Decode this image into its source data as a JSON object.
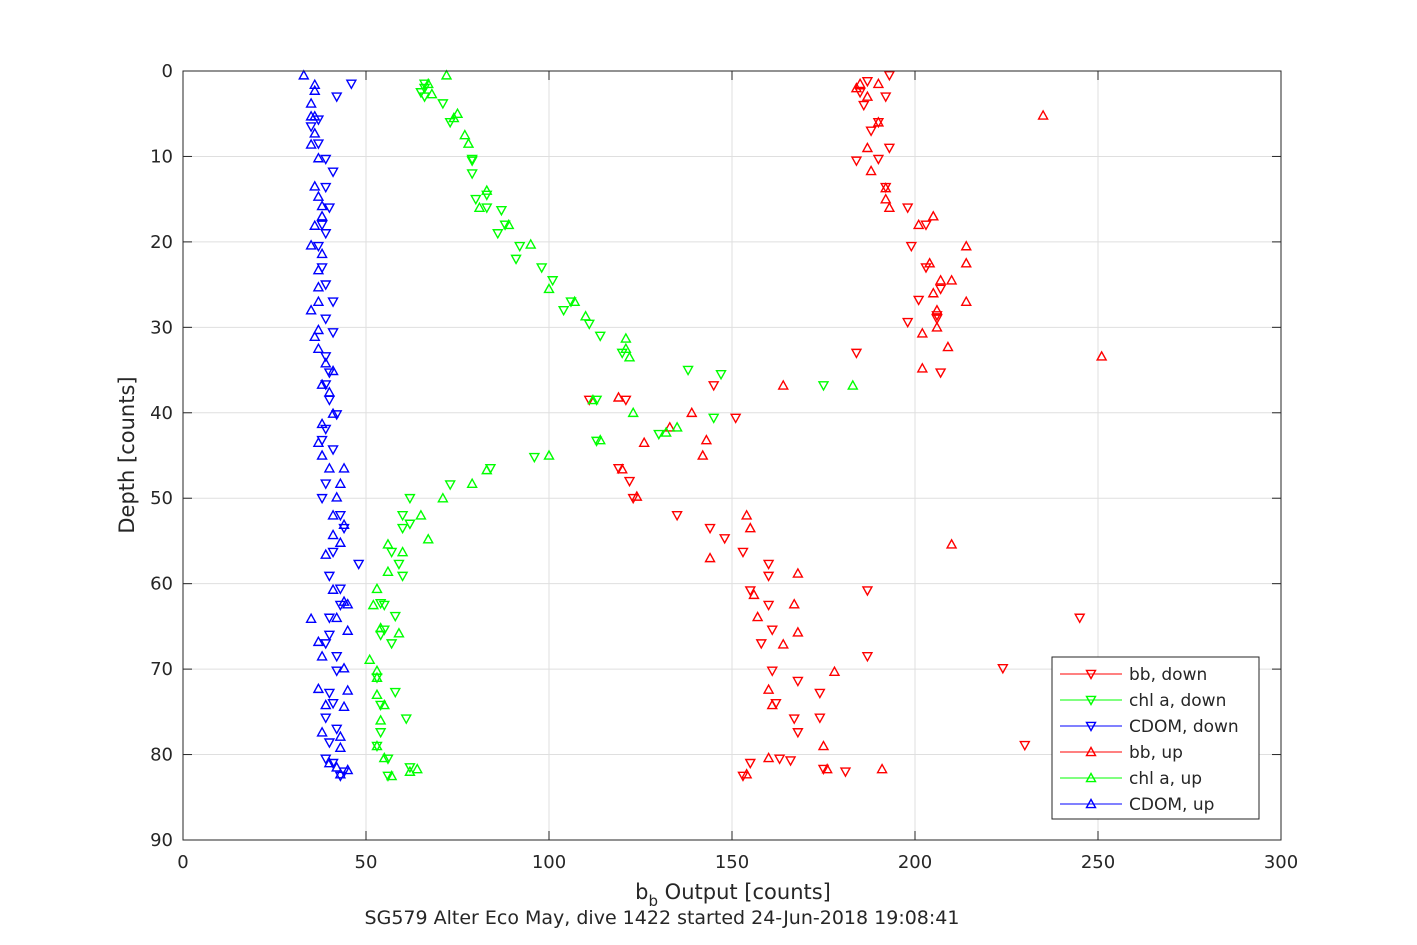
{
  "chart_data": {
    "type": "scatter",
    "xlabel_main": "b",
    "xlabel_sub": "b",
    "xlabel_rest": " Output [counts]",
    "ylabel": "Depth [counts]",
    "subtitle": "SG579 Alter Eco May, dive 1422 started 24-Jun-2018 19:08:41",
    "xlim": [
      0,
      300
    ],
    "ylim": [
      0,
      90
    ],
    "y_reversed": true,
    "grid": true,
    "legend_position": "bottom-right",
    "xticks": [
      0,
      50,
      100,
      150,
      200,
      250,
      300
    ],
    "yticks": [
      0,
      10,
      20,
      30,
      40,
      50,
      60,
      70,
      80,
      90
    ],
    "series": [
      {
        "name": "bb, down",
        "color": "#ff0000",
        "marker": "triangle-down",
        "points": [
          [
            193,
            0.5
          ],
          [
            187,
            1.2
          ],
          [
            185,
            2.5
          ],
          [
            192,
            3
          ],
          [
            186,
            4
          ],
          [
            190,
            6
          ],
          [
            188,
            7
          ],
          [
            193,
            9
          ],
          [
            184,
            10.5
          ],
          [
            190,
            10.3
          ],
          [
            192,
            13.6
          ],
          [
            198,
            16
          ],
          [
            203,
            18
          ],
          [
            199,
            20.5
          ],
          [
            203,
            23
          ],
          [
            207,
            25.5
          ],
          [
            201,
            26.8
          ],
          [
            206,
            28.6
          ],
          [
            198,
            29.4
          ],
          [
            206,
            29
          ],
          [
            184,
            33
          ],
          [
            207,
            35.3
          ],
          [
            145,
            36.8
          ],
          [
            111,
            38.5
          ],
          [
            121,
            38.5
          ],
          [
            151,
            40.6
          ],
          [
            119,
            46.5
          ],
          [
            122,
            48
          ],
          [
            123,
            50
          ],
          [
            135,
            52
          ],
          [
            144,
            53.5
          ],
          [
            148,
            54.7
          ],
          [
            153,
            56.3
          ],
          [
            160,
            57.7
          ],
          [
            160,
            59.1
          ],
          [
            155,
            60.8
          ],
          [
            187,
            60.8
          ],
          [
            160,
            62.5
          ],
          [
            245,
            64
          ],
          [
            161,
            65.4
          ],
          [
            158,
            67
          ],
          [
            187,
            68.5
          ],
          [
            224,
            69.9
          ],
          [
            161,
            70.2
          ],
          [
            174,
            72.8
          ],
          [
            168,
            71.4
          ],
          [
            162,
            74
          ],
          [
            174,
            75.7
          ],
          [
            167,
            75.8
          ],
          [
            168,
            77.4
          ],
          [
            230,
            78.9
          ],
          [
            163,
            80.5
          ],
          [
            166,
            80.7
          ],
          [
            155,
            81
          ],
          [
            175,
            81.7
          ],
          [
            181,
            82
          ],
          [
            153,
            82.5
          ]
        ]
      },
      {
        "name": "chl a, down",
        "color": "#00ff00",
        "marker": "triangle-down",
        "points": [
          [
            66,
            1.5
          ],
          [
            66,
            2
          ],
          [
            65,
            2.5
          ],
          [
            66,
            3
          ],
          [
            71,
            3.8
          ],
          [
            73,
            6
          ],
          [
            79,
            10.5
          ],
          [
            79,
            10.3
          ],
          [
            79,
            12
          ],
          [
            83,
            14.5
          ],
          [
            80,
            15
          ],
          [
            83,
            16
          ],
          [
            87,
            16.3
          ],
          [
            88,
            18
          ],
          [
            86,
            19
          ],
          [
            92,
            20.5
          ],
          [
            91,
            22
          ],
          [
            98,
            23
          ],
          [
            101,
            24.5
          ],
          [
            106,
            27
          ],
          [
            104,
            28
          ],
          [
            111,
            29.6
          ],
          [
            114,
            31
          ],
          [
            120,
            33
          ],
          [
            138,
            35
          ],
          [
            147,
            35.5
          ],
          [
            175,
            36.8
          ],
          [
            113,
            38.5
          ],
          [
            145,
            40.6
          ],
          [
            130,
            42.5
          ],
          [
            113,
            43.3
          ],
          [
            96,
            45.2
          ],
          [
            84,
            46.5
          ],
          [
            73,
            48.4
          ],
          [
            62,
            50
          ],
          [
            60,
            52
          ],
          [
            60,
            53.5
          ],
          [
            62,
            53
          ],
          [
            57,
            56.3
          ],
          [
            59,
            57.7
          ],
          [
            60,
            59.1
          ],
          [
            54,
            62.3
          ],
          [
            55,
            62.5
          ],
          [
            58,
            63.8
          ],
          [
            55,
            65.4
          ],
          [
            54,
            66
          ],
          [
            57,
            67
          ],
          [
            53,
            71
          ],
          [
            58,
            72.7
          ],
          [
            54,
            74.2
          ],
          [
            61,
            75.8
          ],
          [
            54,
            77.4
          ],
          [
            53,
            79
          ],
          [
            56,
            80.5
          ],
          [
            62,
            81.5
          ],
          [
            56,
            82.5
          ]
        ]
      },
      {
        "name": "CDOM, down",
        "color": "#0000ff",
        "marker": "triangle-down",
        "points": [
          [
            46,
            1.5
          ],
          [
            42,
            3
          ],
          [
            37,
            5.7
          ],
          [
            35,
            6.5
          ],
          [
            37,
            8.5
          ],
          [
            39,
            10.3
          ],
          [
            41,
            11.8
          ],
          [
            39,
            13.6
          ],
          [
            40,
            16
          ],
          [
            38,
            18
          ],
          [
            39,
            19
          ],
          [
            37,
            20.5
          ],
          [
            38,
            23
          ],
          [
            39,
            25
          ],
          [
            41,
            27
          ],
          [
            39,
            29
          ],
          [
            41,
            30.6
          ],
          [
            39,
            33.4
          ],
          [
            40,
            35.3
          ],
          [
            39,
            36.7
          ],
          [
            40,
            38.5
          ],
          [
            42,
            40.2
          ],
          [
            39,
            41.9
          ],
          [
            38,
            43.2
          ],
          [
            41,
            44.3
          ],
          [
            39,
            48.3
          ],
          [
            38,
            50
          ],
          [
            43,
            52
          ],
          [
            44,
            53.5
          ],
          [
            41,
            56.3
          ],
          [
            48,
            57.7
          ],
          [
            40,
            59.1
          ],
          [
            43,
            60.6
          ],
          [
            43,
            62.5
          ],
          [
            40,
            64
          ],
          [
            40,
            66
          ],
          [
            39,
            67
          ],
          [
            42,
            68.5
          ],
          [
            42,
            70.2
          ],
          [
            40,
            72.8
          ],
          [
            41,
            74
          ],
          [
            39,
            75.7
          ],
          [
            42,
            77
          ],
          [
            40,
            78.6
          ],
          [
            39,
            80.5
          ],
          [
            41,
            81
          ],
          [
            44,
            82
          ],
          [
            43,
            82.5
          ]
        ]
      },
      {
        "name": "bb, up",
        "color": "#ff0000",
        "marker": "triangle-up",
        "points": [
          [
            185,
            1.5
          ],
          [
            190,
            1.5
          ],
          [
            184,
            2
          ],
          [
            187,
            3
          ],
          [
            235,
            5.2
          ],
          [
            190,
            6
          ],
          [
            187,
            9
          ],
          [
            188,
            11.7
          ],
          [
            192,
            13.7
          ],
          [
            192,
            15
          ],
          [
            193,
            16
          ],
          [
            205,
            17
          ],
          [
            201,
            18
          ],
          [
            214,
            20.5
          ],
          [
            214,
            22.5
          ],
          [
            204,
            22.5
          ],
          [
            207,
            24.5
          ],
          [
            210,
            24.5
          ],
          [
            205,
            26
          ],
          [
            214,
            27
          ],
          [
            206,
            28
          ],
          [
            206,
            30
          ],
          [
            202,
            30.7
          ],
          [
            209,
            32.3
          ],
          [
            251,
            33.4
          ],
          [
            202,
            34.8
          ],
          [
            164,
            36.8
          ],
          [
            119,
            38.2
          ],
          [
            139,
            40
          ],
          [
            126,
            43.5
          ],
          [
            133,
            41.7
          ],
          [
            143,
            43.2
          ],
          [
            142,
            45
          ],
          [
            120,
            46.6
          ],
          [
            124,
            49.8
          ],
          [
            154,
            52
          ],
          [
            155,
            53.5
          ],
          [
            144,
            57
          ],
          [
            168,
            58.8
          ],
          [
            210,
            55.4
          ],
          [
            156,
            61.3
          ],
          [
            167,
            62.4
          ],
          [
            157,
            63.9
          ],
          [
            168,
            65.7
          ],
          [
            164,
            67.1
          ],
          [
            178,
            70.3
          ],
          [
            160,
            72.4
          ],
          [
            161,
            74.2
          ],
          [
            175,
            79
          ],
          [
            176,
            81.7
          ],
          [
            191,
            81.7
          ],
          [
            160,
            80.4
          ],
          [
            154,
            82.3
          ]
        ]
      },
      {
        "name": "chl a, up",
        "color": "#00ff00",
        "marker": "triangle-up",
        "points": [
          [
            72,
            0.5
          ],
          [
            67,
            1.5
          ],
          [
            68,
            2.7
          ],
          [
            75,
            5
          ],
          [
            74,
            5.5
          ],
          [
            77,
            7.5
          ],
          [
            78,
            8.5
          ],
          [
            83,
            14
          ],
          [
            81,
            16
          ],
          [
            89,
            18
          ],
          [
            95,
            20.3
          ],
          [
            100,
            25.5
          ],
          [
            107,
            27
          ],
          [
            110,
            28.7
          ],
          [
            121,
            31.3
          ],
          [
            121,
            32.5
          ],
          [
            122,
            33.5
          ],
          [
            183,
            36.8
          ],
          [
            112,
            38.5
          ],
          [
            123,
            40
          ],
          [
            135,
            41.7
          ],
          [
            132,
            42.3
          ],
          [
            114,
            43.2
          ],
          [
            100,
            45
          ],
          [
            83,
            46.7
          ],
          [
            79,
            48.3
          ],
          [
            71,
            50
          ],
          [
            65,
            52
          ],
          [
            67,
            54.8
          ],
          [
            56,
            55.4
          ],
          [
            60,
            56.3
          ],
          [
            56,
            58.6
          ],
          [
            53,
            60.6
          ],
          [
            52,
            62.5
          ],
          [
            54,
            65.2
          ],
          [
            59,
            65.8
          ],
          [
            51,
            68.9
          ],
          [
            53,
            70.2
          ],
          [
            53,
            71
          ],
          [
            53,
            73
          ],
          [
            55,
            74.2
          ],
          [
            54,
            76
          ],
          [
            53,
            79
          ],
          [
            55,
            80.4
          ],
          [
            64,
            81.7
          ],
          [
            62,
            82
          ],
          [
            57,
            82.5
          ]
        ]
      },
      {
        "name": "CDOM, up",
        "color": "#0000ff",
        "marker": "triangle-up",
        "points": [
          [
            33,
            0.5
          ],
          [
            36,
            1.6
          ],
          [
            36,
            2.3
          ],
          [
            35,
            3.8
          ],
          [
            35,
            5.3
          ],
          [
            36,
            5.3
          ],
          [
            36,
            7.3
          ],
          [
            35,
            8.6
          ],
          [
            37,
            10.2
          ],
          [
            36,
            13.5
          ],
          [
            37,
            14.7
          ],
          [
            38,
            15.8
          ],
          [
            38,
            17
          ],
          [
            36,
            18.1
          ],
          [
            35,
            20.4
          ],
          [
            38,
            21.4
          ],
          [
            37,
            23.3
          ],
          [
            37,
            25.3
          ],
          [
            37,
            27
          ],
          [
            35,
            28
          ],
          [
            37,
            30.3
          ],
          [
            36,
            31.1
          ],
          [
            37,
            32.5
          ],
          [
            39,
            34.2
          ],
          [
            41,
            35.1
          ],
          [
            38,
            36.7
          ],
          [
            40,
            37.6
          ],
          [
            41,
            40.1
          ],
          [
            38,
            41.3
          ],
          [
            37,
            43.5
          ],
          [
            38,
            45
          ],
          [
            40,
            46.5
          ],
          [
            44,
            46.5
          ],
          [
            43,
            48.3
          ],
          [
            42,
            49.9
          ],
          [
            41,
            52
          ],
          [
            44,
            53.1
          ],
          [
            41,
            54.3
          ],
          [
            43,
            55.2
          ],
          [
            39,
            56.6
          ],
          [
            41,
            60.7
          ],
          [
            44,
            62.1
          ],
          [
            45,
            62.4
          ],
          [
            42,
            64
          ],
          [
            35,
            64.1
          ],
          [
            45,
            65.5
          ],
          [
            37,
            66.8
          ],
          [
            38,
            68.5
          ],
          [
            44,
            69.9
          ],
          [
            37,
            72.3
          ],
          [
            45,
            72.5
          ],
          [
            39,
            74.2
          ],
          [
            44,
            74.4
          ],
          [
            38,
            77.4
          ],
          [
            43,
            77.9
          ],
          [
            43,
            79.2
          ],
          [
            40,
            81
          ],
          [
            42,
            81.5
          ],
          [
            45,
            81.8
          ],
          [
            43,
            82.3
          ]
        ]
      }
    ]
  }
}
